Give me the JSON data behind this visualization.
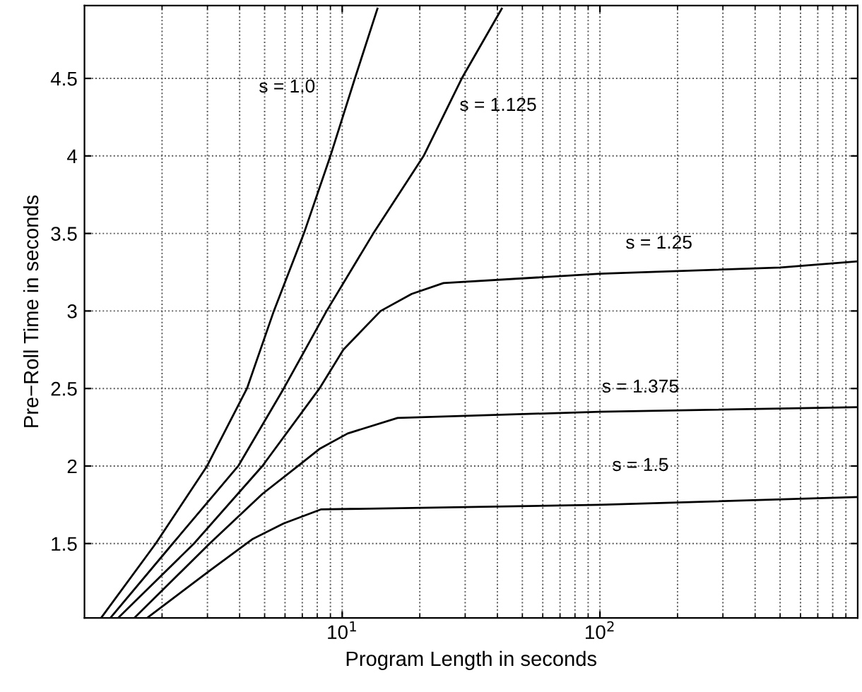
{
  "chart_data": {
    "type": "line",
    "xlabel": "Program Length in seconds",
    "ylabel": "Pre−Roll Time in seconds",
    "log": "x",
    "xlim": [
      1,
      1000
    ],
    "ylim": [
      1.02,
      4.97
    ],
    "xticks": [
      {
        "value": 10,
        "label": "10$^{1}$"
      },
      {
        "value": 100,
        "label": "10$^{2}$"
      }
    ],
    "yticks": [
      1.5,
      2,
      2.5,
      3,
      3.5,
      4,
      4.5
    ],
    "grid": true,
    "line_style": "solid",
    "series": [
      {
        "name": "s = 1.0",
        "color": "#000000",
        "x": [
          1.16,
          1.89,
          2.99,
          4.27,
          5.43,
          7.1,
          9.0,
          11.2,
          13.7
        ],
        "values": [
          1.02,
          1.5,
          2.0,
          2.5,
          3.0,
          3.5,
          4.0,
          4.5,
          4.95
        ]
      },
      {
        "name": "s = 1.125",
        "color": "#000000",
        "x": [
          1.26,
          2.2,
          3.95,
          5.93,
          8.7,
          13.2,
          20.7,
          29.1,
          41.6
        ],
        "values": [
          1.02,
          1.5,
          2.0,
          2.5,
          3.0,
          3.5,
          4.0,
          4.5,
          4.95
        ]
      },
      {
        "name": "s = 1.25",
        "color": "#000000",
        "x": [
          1.35,
          2.66,
          4.9,
          8.16,
          10.1,
          14.1,
          18.6,
          24.7,
          100,
          500,
          1000
        ],
        "values": [
          1.02,
          1.5,
          2.0,
          2.5,
          2.75,
          3.0,
          3.11,
          3.18,
          3.24,
          3.28,
          3.32
        ]
      },
      {
        "name": "s = 1.375",
        "color": "#000000",
        "x": [
          1.56,
          3.06,
          4.9,
          6.74,
          8.16,
          10.5,
          16.4,
          100,
          1000
        ],
        "values": [
          1.02,
          1.5,
          1.82,
          2.0,
          2.11,
          2.21,
          2.31,
          2.35,
          2.38
        ]
      },
      {
        "name": "s = 1.5",
        "color": "#000000",
        "x": [
          1.75,
          3.03,
          4.5,
          5.93,
          8.26,
          100,
          1000
        ],
        "values": [
          1.02,
          1.32,
          1.53,
          1.63,
          1.72,
          1.75,
          1.8
        ]
      }
    ]
  }
}
